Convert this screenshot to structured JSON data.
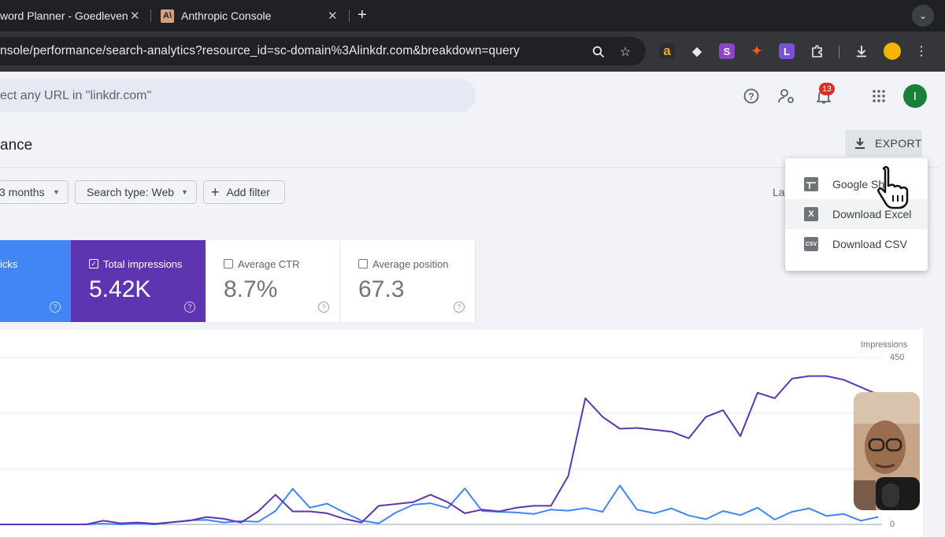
{
  "browser": {
    "tabs": [
      {
        "title": "word Planner - Goedleven",
        "active": false
      },
      {
        "title": "Anthropic Console",
        "active": true
      }
    ],
    "new_tab": "+",
    "url": "nsole/performance/search-analytics?resource_id=sc-domain%3Alinkdr.com&breakdown=query",
    "extensions": [
      "a",
      "◆",
      "S",
      "✦",
      "L"
    ]
  },
  "header": {
    "search_placeholder": "ect any URL in \"linkdr.com\"",
    "notifications_count": "13",
    "avatar_letter": "I"
  },
  "page": {
    "title": "ance",
    "export_label": "EXPORT"
  },
  "filters": {
    "date": "3 months",
    "search_type": "Search type: Web",
    "add_filter": "Add filter",
    "last_updated": "La"
  },
  "metrics": [
    {
      "label": "icks",
      "value": "",
      "selected": true,
      "color": "#4285f4"
    },
    {
      "label": "Total impressions",
      "value": "5.42K",
      "selected": true,
      "color": "#5e35b1"
    },
    {
      "label": "Average CTR",
      "value": "8.7%",
      "selected": false
    },
    {
      "label": "Average position",
      "value": "67.3",
      "selected": false
    }
  ],
  "export_menu": [
    {
      "label": "Google Sh",
      "icon": "sheets-icon"
    },
    {
      "label": "Download Excel",
      "icon": "excel-icon"
    },
    {
      "label": "Download CSV",
      "icon": "csv-icon"
    }
  ],
  "chart_data": {
    "type": "line",
    "ylabel_right": "Impressions",
    "right_axis_ticks": [
      "450",
      "0"
    ],
    "ylim_right": [
      0,
      450
    ],
    "series": [
      {
        "name": "Clicks",
        "color": "#4285f4",
        "values": [
          0,
          0,
          0,
          0,
          0,
          0,
          2,
          0,
          2,
          0,
          6,
          11,
          12,
          5,
          9,
          7,
          36,
          96,
          45,
          56,
          32,
          10,
          3,
          32,
          53,
          57,
          44,
          97,
          36,
          34,
          32,
          28,
          40,
          37,
          44,
          34,
          105,
          40,
          30,
          43,
          24,
          14,
          36,
          25,
          45,
          13,
          34,
          43,
          23,
          28,
          10,
          20
        ]
      },
      {
        "name": "Total impressions",
        "color": "#5e35b1",
        "values": [
          0,
          0,
          0,
          0,
          0,
          0,
          10,
          3,
          5,
          2,
          6,
          10,
          20,
          15,
          5,
          35,
          80,
          35,
          35,
          30,
          15,
          5,
          50,
          55,
          60,
          80,
          60,
          30,
          40,
          35,
          45,
          50,
          50,
          130,
          340,
          290,
          258,
          260,
          255,
          250,
          232,
          290,
          308,
          238,
          355,
          340,
          393,
          400,
          400,
          390,
          370,
          350
        ]
      }
    ]
  }
}
